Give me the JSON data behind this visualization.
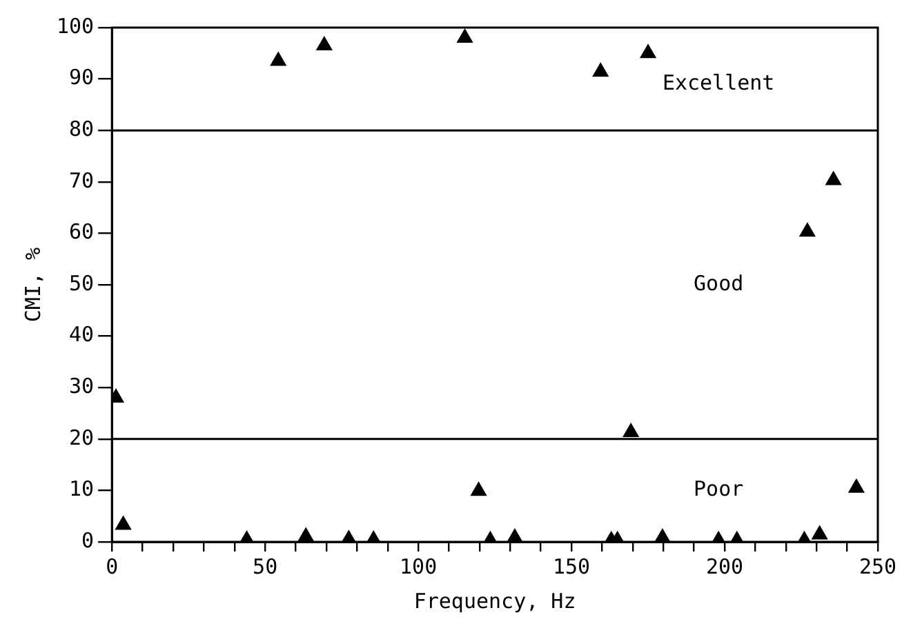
{
  "chart_data": {
    "type": "scatter",
    "xlabel": "Frequency, Hz",
    "ylabel": "CMI, %",
    "x": [
      1.3,
      3.7,
      44,
      54.3,
      63.3,
      69.3,
      77.3,
      85.4,
      115.2,
      119.7,
      123.5,
      131.5,
      159.5,
      163,
      165,
      169.4,
      175,
      179.7,
      198,
      204,
      226,
      227,
      231,
      235.5,
      243
    ],
    "series": [
      {
        "color": "#000000",
        "values": [
          28,
          3.3,
          0.4,
          93.5,
          1,
          96.5,
          0.5,
          0.4,
          98,
          9.9,
          0.3,
          0.8,
          91.4,
          0.3,
          0.3,
          21.3,
          95,
          0.8,
          0.3,
          0.3,
          0.3,
          60.3,
          1.4,
          70.3,
          10.5
        ]
      }
    ],
    "xlim": [
      0,
      250
    ],
    "ylim": [
      0,
      100
    ],
    "xticks": [
      0,
      {
        "value": 10,
        "label": null
      },
      {
        "value": 20,
        "label": null
      },
      {
        "value": 30,
        "label": null
      },
      {
        "value": 40,
        "label": null
      },
      50,
      {
        "value": 60,
        "label": null
      },
      {
        "value": 70,
        "label": null
      },
      {
        "value": 80,
        "label": null
      },
      {
        "value": 90,
        "label": null
      },
      100,
      {
        "value": 110,
        "label": null
      },
      {
        "value": 120,
        "label": null
      },
      {
        "value": 130,
        "label": null
      },
      {
        "value": 140,
        "label": null
      },
      150,
      {
        "value": 160,
        "label": null
      },
      {
        "value": 170,
        "label": null
      },
      {
        "value": 180,
        "label": null
      },
      {
        "value": 190,
        "label": null
      },
      200,
      {
        "value": 210,
        "label": null
      },
      {
        "value": 220,
        "label": null
      },
      {
        "value": 230,
        "label": null
      },
      {
        "value": 240,
        "label": null
      },
      250
    ],
    "yticks": [
      0,
      10,
      20,
      30,
      40,
      50,
      60,
      70,
      80,
      90,
      100
    ],
    "ref_lines": [
      {
        "axis": "y",
        "value": 20
      },
      {
        "axis": "y",
        "value": 80
      }
    ],
    "annotations": [
      "Excellent",
      "Good",
      "Poor"
    ],
    "marker": "triangle",
    "grid": false,
    "legend": false
  }
}
